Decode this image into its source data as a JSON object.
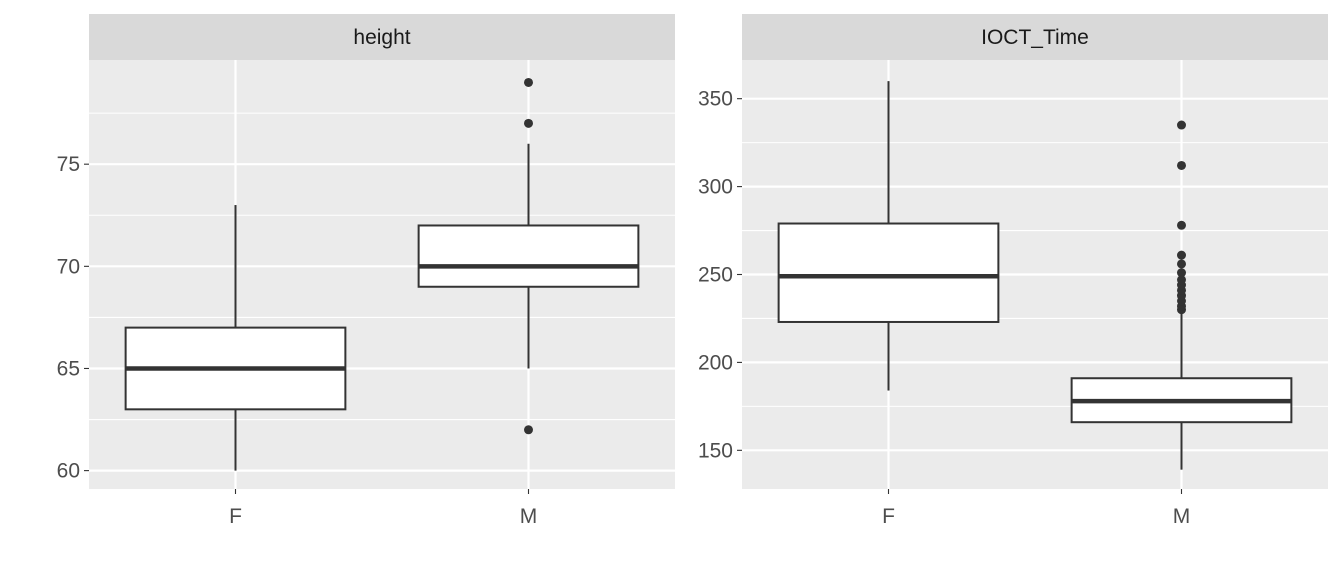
{
  "chart_data": {
    "type": "boxplot",
    "facets": [
      {
        "label": "height",
        "categories": [
          "F",
          "M"
        ],
        "y_ticks": [
          60,
          65,
          70,
          75
        ],
        "ylim": [
          59.1,
          80.1
        ],
        "boxes": [
          {
            "category": "F",
            "lower_whisker": 60,
            "q1": 63,
            "median": 65,
            "q3": 67,
            "upper_whisker": 73,
            "outliers": []
          },
          {
            "category": "M",
            "lower_whisker": 65,
            "q1": 69,
            "median": 70,
            "q3": 72,
            "upper_whisker": 76,
            "outliers": [
              62,
              77,
              79
            ]
          }
        ]
      },
      {
        "label": "IOCT_Time",
        "categories": [
          "F",
          "M"
        ],
        "y_ticks": [
          150,
          200,
          250,
          300,
          350
        ],
        "ylim": [
          128,
          372
        ],
        "boxes": [
          {
            "category": "F",
            "lower_whisker": 184,
            "q1": 223,
            "median": 249,
            "q3": 279,
            "upper_whisker": 360,
            "outliers": []
          },
          {
            "category": "M",
            "lower_whisker": 139,
            "q1": 166,
            "median": 178,
            "q3": 191,
            "upper_whisker": 228,
            "outliers": [
              230,
              232,
              235,
              238,
              241,
              244,
              247,
              251,
              256,
              261,
              278,
              312,
              335
            ]
          }
        ]
      }
    ],
    "grid": true,
    "legend": "none",
    "colors": {
      "panel_background": "#ebebeb",
      "strip_background": "#d9d9d9",
      "grid": "#ffffff",
      "box_fill": "#ffffff",
      "box_line": "#333333"
    }
  }
}
